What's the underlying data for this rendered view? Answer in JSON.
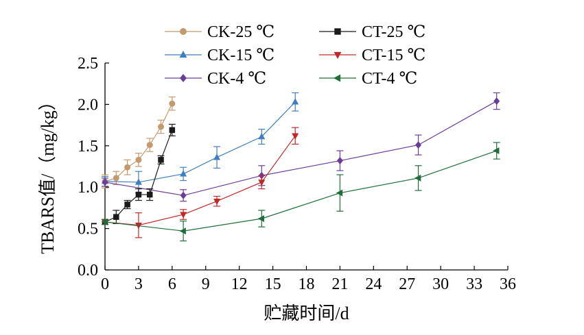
{
  "chart_data": {
    "type": "line",
    "title": "",
    "xlabel": "贮藏时间/d",
    "ylabel": "TBARS值/（mg/kg）",
    "xlim": [
      0,
      36
    ],
    "ylim": [
      0.0,
      2.5
    ],
    "x_ticks": [
      "0",
      "3",
      "6",
      "9",
      "12",
      "15",
      "18",
      "21",
      "24",
      "27",
      "30",
      "33",
      "36"
    ],
    "y_ticks": [
      "0.0",
      "0.5",
      "1.0",
      "1.5",
      "2.0",
      "2.5"
    ],
    "grid": false,
    "legend_position": "top",
    "series": [
      {
        "name": "CK-25 ℃",
        "color": "#c49a6c",
        "marker": "circle",
        "x": [
          0,
          1,
          2,
          3,
          4,
          5,
          6
        ],
        "y": [
          1.07,
          1.11,
          1.24,
          1.33,
          1.51,
          1.73,
          2.01
        ],
        "err": [
          0.08,
          0.08,
          0.09,
          0.08,
          0.08,
          0.08,
          0.08
        ]
      },
      {
        "name": "CK-15 ℃",
        "color": "#3f7fbf",
        "marker": "triangle-up",
        "x": [
          0,
          3,
          7,
          10,
          14,
          17
        ],
        "y": [
          1.07,
          1.06,
          1.16,
          1.36,
          1.61,
          2.03
        ],
        "err": [
          0.06,
          0.13,
          0.08,
          0.13,
          0.09,
          0.11
        ]
      },
      {
        "name": "CK-4 ℃",
        "color": "#6a3d9a",
        "marker": "diamond",
        "x": [
          0,
          7,
          14,
          21,
          28,
          35
        ],
        "y": [
          1.06,
          0.9,
          1.14,
          1.32,
          1.51,
          2.04
        ],
        "err": [
          0.05,
          0.07,
          0.12,
          0.12,
          0.12,
          0.1
        ]
      },
      {
        "name": "CT-25 ℃",
        "color": "#1a1a1a",
        "marker": "square",
        "x": [
          0,
          1,
          2,
          3,
          4,
          5,
          6
        ],
        "y": [
          0.58,
          0.64,
          0.79,
          0.91,
          0.91,
          1.33,
          1.69
        ],
        "err": [
          0.03,
          0.08,
          0.05,
          0.07,
          0.07,
          0.05,
          0.07
        ]
      },
      {
        "name": "CT-15 ℃",
        "color": "#c0292a",
        "marker": "triangle-down",
        "x": [
          0,
          3,
          7,
          10,
          14,
          17
        ],
        "y": [
          0.58,
          0.54,
          0.67,
          0.83,
          1.06,
          1.62
        ],
        "err": [
          0.03,
          0.15,
          0.06,
          0.06,
          0.08,
          0.1
        ]
      },
      {
        "name": "CT-4 ℃",
        "color": "#1e6e3a",
        "marker": "triangle-left",
        "x": [
          0,
          7,
          14,
          21,
          28,
          35
        ],
        "y": [
          0.58,
          0.47,
          0.62,
          0.93,
          1.11,
          1.44
        ],
        "err": [
          0.03,
          0.12,
          0.1,
          0.22,
          0.15,
          0.1
        ]
      }
    ]
  }
}
